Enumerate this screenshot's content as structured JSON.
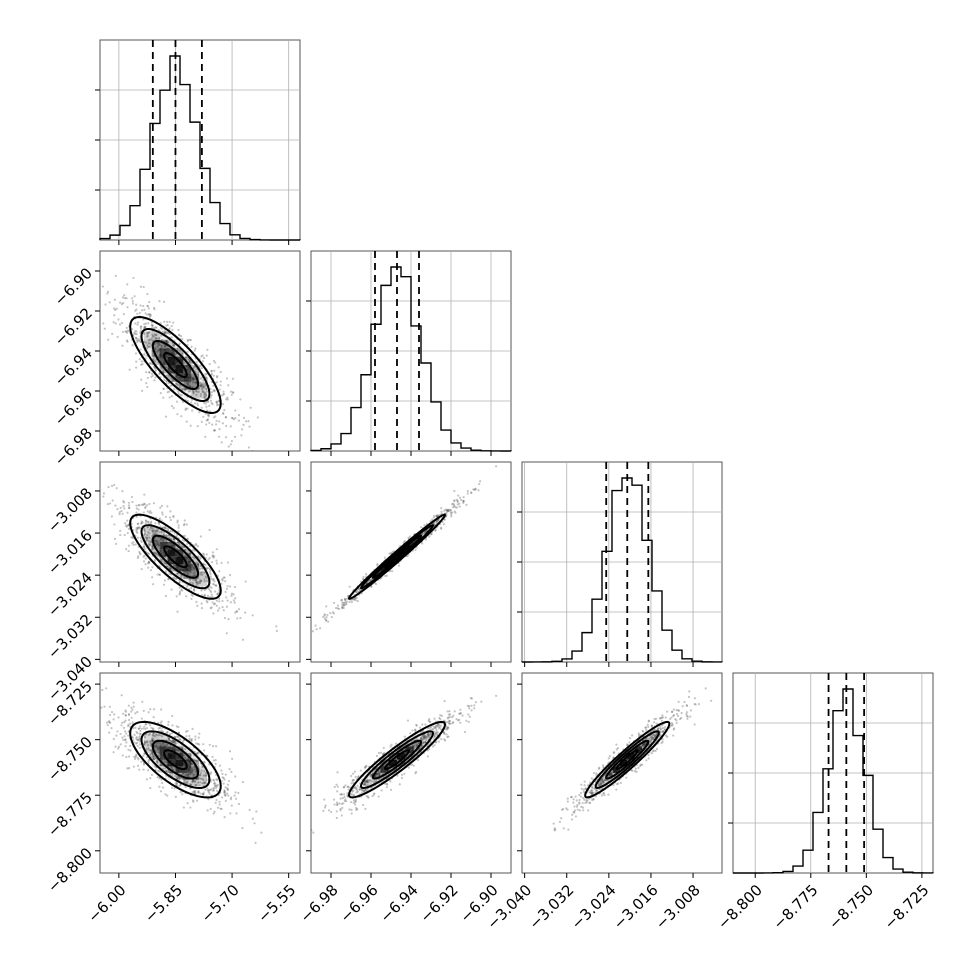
{
  "chart_data": {
    "type": "corner",
    "parameters": [
      {
        "mean": -5.85,
        "sd": 0.06,
        "range": [
          -6.05,
          -5.52
        ],
        "ticks": [
          -6.0,
          -5.85,
          -5.7,
          -5.55
        ],
        "tick_labels": [
          "−6.00",
          "−5.85",
          "−5.70",
          "−5.55"
        ],
        "quantiles": [
          -5.91,
          -5.85,
          -5.78
        ]
      },
      {
        "mean": -6.947,
        "sd": 0.012,
        "range": [
          -6.99,
          -6.89
        ],
        "ticks": [
          -6.98,
          -6.96,
          -6.94,
          -6.92,
          -6.9
        ],
        "tick_labels": [
          "−6.98",
          "−6.96",
          "−6.94",
          "−6.92",
          "−6.90"
        ],
        "quantiles": [
          -6.958,
          -6.947,
          -6.936
        ]
      },
      {
        "mean": -3.0205,
        "sd": 0.004,
        "range": [
          -3.0405,
          -3.0025
        ],
        "ticks": [
          -3.04,
          -3.032,
          -3.024,
          -3.016,
          -3.008
        ],
        "tick_labels": [
          "−3.040",
          "−3.032",
          "−3.024",
          "−3.016",
          "−3.008"
        ],
        "quantiles": [
          -3.0245,
          -3.0205,
          -3.0165
        ]
      },
      {
        "mean": -8.759,
        "sd": 0.0085,
        "range": [
          -8.81,
          -8.72
        ],
        "ticks": [
          -8.8,
          -8.775,
          -8.75,
          -8.725
        ],
        "tick_labels": [
          "−8.800",
          "−8.775",
          "−8.750",
          "−8.725"
        ],
        "quantiles": [
          -8.767,
          -8.759,
          -8.751
        ]
      }
    ],
    "correlations": [
      [
        1.0,
        -0.8,
        -0.8,
        -0.7
      ],
      [
        -0.8,
        1.0,
        0.99,
        0.93
      ],
      [
        -0.8,
        0.99,
        1.0,
        0.95
      ],
      [
        -0.7,
        0.93,
        0.95,
        1.0
      ]
    ],
    "histogram_bins": 20,
    "contour_levels_sigma": [
      0.5,
      1.0,
      1.5,
      2.0
    ],
    "colors": {
      "line": "#000000",
      "density": "#000000",
      "points": "#555555",
      "grid": "#b0b0b0"
    },
    "grid": true,
    "axis_labels": []
  }
}
